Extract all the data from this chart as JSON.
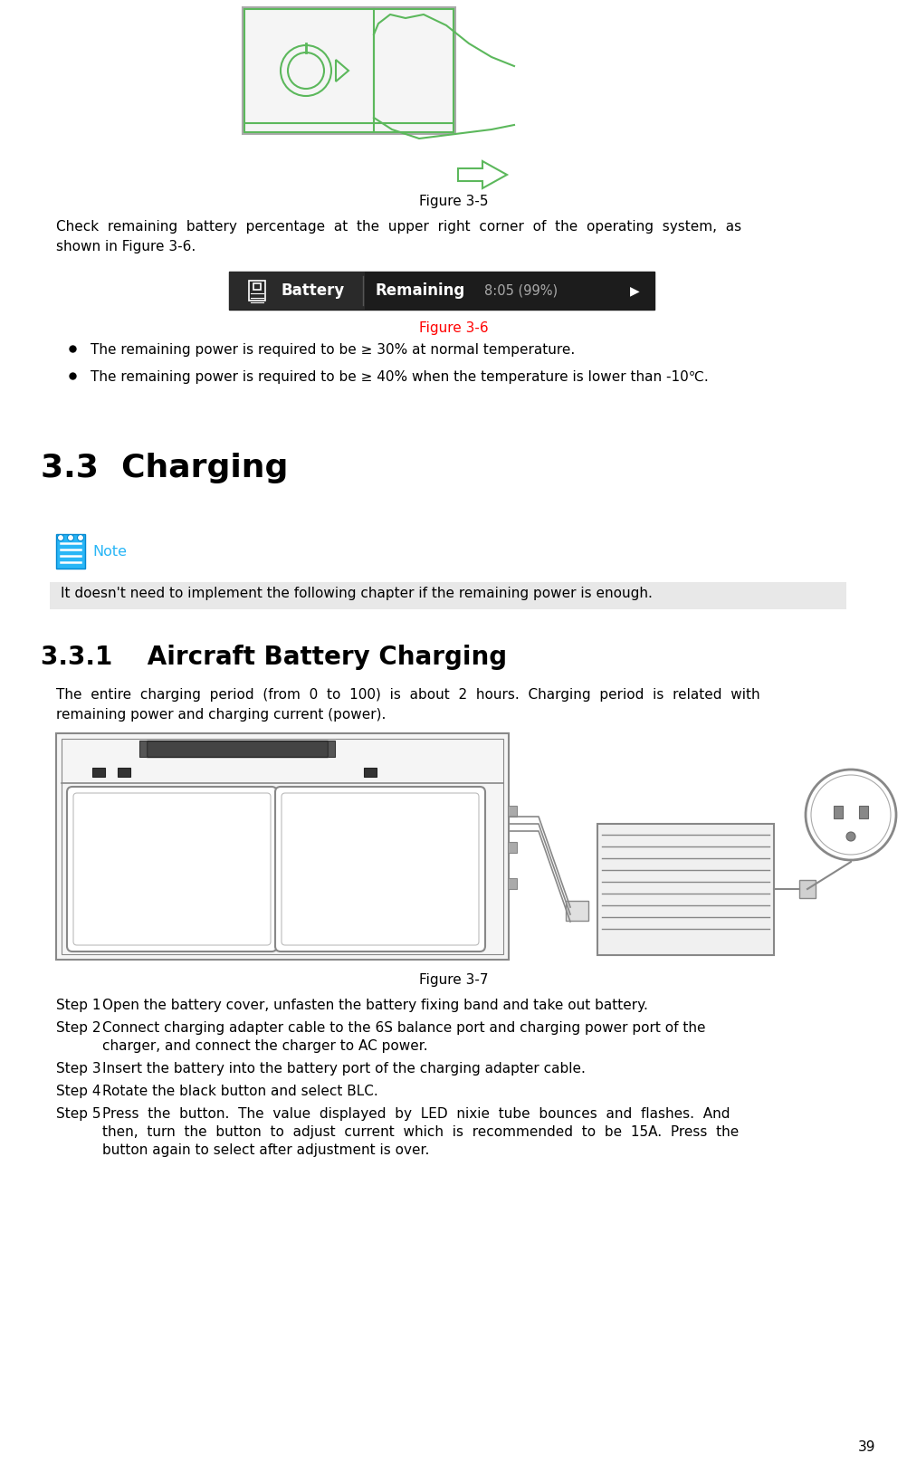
{
  "page_num": "39",
  "bg_color": "#ffffff",
  "fig_3_5_caption": "Figure 3-5",
  "para1_line1": "Check  remaining  battery  percentage  at  the  upper  right  corner  of  the  operating  system,  as",
  "para1_line2": "shown in Figure 3-6.",
  "fig_3_6_caption": "Figure 3-6",
  "fig_3_6_color": "#ff0000",
  "bullet1": "The remaining power is required to be ≥ 30% at normal temperature.",
  "bullet2": "The remaining power is required to be ≥ 40% when the temperature is lower than -10℃.",
  "section_33": "3.3  Charging",
  "note_color": "#29b6f6",
  "note_text": "Note",
  "note_highlight": "It doesn't need to implement the following chapter if the remaining power is enough.",
  "note_bg": "#e8e8e8",
  "section_331": "3.3.1    Aircraft Battery Charging",
  "para2_line1": "The  entire  charging  period  (from  0  to  100)  is  about  2  hours.  Charging  period  is  related  with",
  "para2_line2": "remaining power and charging current (power).",
  "fig_3_7_caption": "Figure 3-7",
  "step1_label": "Step 1",
  "step1_text": "Open the battery cover, unfasten the battery fixing band and take out battery.",
  "step2_label": "Step 2",
  "step2_line1": "Connect charging adapter cable to the 6S balance port and charging power port of the",
  "step2_line2": "charger, and connect the charger to AC power.",
  "step3_label": "Step 3",
  "step3_text": "Insert the battery into the battery port of the charging adapter cable.",
  "step4_label": "Step 4",
  "step4_text": "Rotate the black button and select BLC.",
  "step5_label": "Step 5",
  "step5_line1": "Press  the  button.  The  value  displayed  by  LED  nixie  tube  bounces  and  flashes.  And",
  "step5_line2": "then,  turn  the  button  to  adjust  current  which  is  recommended  to  be  15A.  Press  the",
  "step5_line3": "button again to select after adjustment is over.",
  "green_color": "#5cb85c",
  "gray_color": "#888888",
  "dark_color": "#333333"
}
